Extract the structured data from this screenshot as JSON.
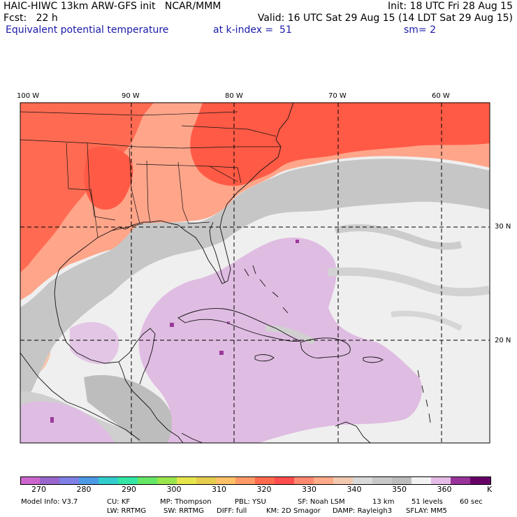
{
  "header": {
    "line1_left": "HAIC-HIWC 13km ARW-GFS init   NCAR/MMM",
    "line1_right": "Init: 18 UTC Fri 28 Aug 15",
    "line2_left": "Fcst:   22 h",
    "line2_right": "Valid: 16 UTC Sat 29 Aug 15 (14 LDT Sat 29 Aug 15)",
    "field": "Equivalent potential temperature",
    "level": "at k-index =  51",
    "smooth": "sm= 2"
  },
  "axes": {
    "lon_labels": [
      "100 W",
      "90 W",
      "80 W",
      "70 W",
      "60 W"
    ],
    "lat_labels": [
      "30 N",
      "20 N"
    ]
  },
  "colorbar": {
    "colors": [
      "#cc66cc",
      "#9966cc",
      "#7f7fe6",
      "#4c99e6",
      "#33cccc",
      "#33e6a6",
      "#66e666",
      "#99e64c",
      "#e6e64c",
      "#e6cc4c",
      "#ffc066",
      "#ff9966",
      "#ff6a4d",
      "#ff4d4d",
      "#ff8870",
      "#ffaa88",
      "#f2c8b0",
      "#d9d9d9",
      "#c8c8c8",
      "#bdbdbd",
      "#f2f2f2",
      "#e6bbe6",
      "#993399",
      "#660066"
    ],
    "ticks": [
      "270",
      "280",
      "290",
      "300",
      "310",
      "320",
      "330",
      "340",
      "350",
      "360"
    ],
    "unit": "K"
  },
  "footer": {
    "line1": [
      "Model Info: V3.7",
      "CU: KF",
      "MP: Thompson",
      "PBL: YSU",
      "SF: Noah LSM",
      "13 km",
      "51 levels",
      "60 sec"
    ],
    "line2": [
      "LW: RRTMG",
      "SW: RRTMG",
      "DIFF: full",
      "KM: 2D Smagor",
      "DAMP: Rayleigh3",
      "SFLAY: MM5"
    ]
  }
}
